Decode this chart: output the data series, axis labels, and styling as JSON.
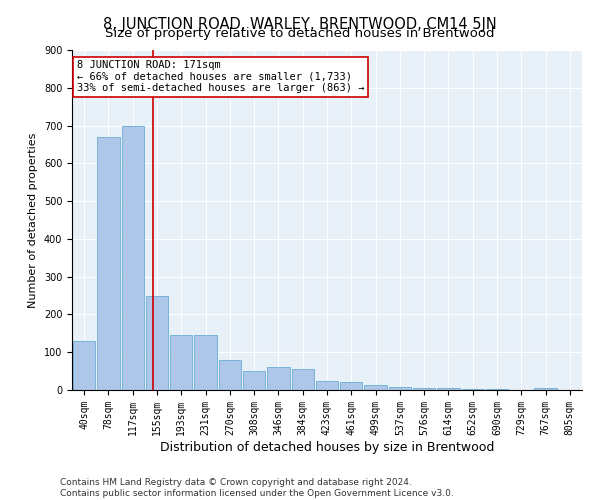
{
  "title": "8, JUNCTION ROAD, WARLEY, BRENTWOOD, CM14 5JN",
  "subtitle": "Size of property relative to detached houses in Brentwood",
  "xlabel": "Distribution of detached houses by size in Brentwood",
  "ylabel": "Number of detached properties",
  "bins": [
    "40sqm",
    "78sqm",
    "117sqm",
    "155sqm",
    "193sqm",
    "231sqm",
    "270sqm",
    "308sqm",
    "346sqm",
    "384sqm",
    "423sqm",
    "461sqm",
    "499sqm",
    "537sqm",
    "576sqm",
    "614sqm",
    "652sqm",
    "690sqm",
    "729sqm",
    "767sqm",
    "805sqm"
  ],
  "bar_heights": [
    130,
    670,
    700,
    250,
    145,
    145,
    80,
    50,
    60,
    55,
    25,
    20,
    12,
    8,
    4,
    4,
    2,
    2,
    1,
    4,
    1
  ],
  "bar_color": "#aec6e8",
  "bar_edge_color": "#6aaed6",
  "bg_color": "#e8f0f8",
  "grid_color": "#ffffff",
  "vline_color": "#cc0000",
  "vline_pos": 2.82,
  "annotation_text": "8 JUNCTION ROAD: 171sqm\n← 66% of detached houses are smaller (1,733)\n33% of semi-detached houses are larger (863) →",
  "annotation_box_color": "#ffffff",
  "annotation_box_edge": "#cc0000",
  "ylim": [
    0,
    900
  ],
  "yticks": [
    0,
    100,
    200,
    300,
    400,
    500,
    600,
    700,
    800,
    900
  ],
  "footer_line1": "Contains HM Land Registry data © Crown copyright and database right 2024.",
  "footer_line2": "Contains public sector information licensed under the Open Government Licence v3.0.",
  "title_fontsize": 10.5,
  "subtitle_fontsize": 9.5,
  "xlabel_fontsize": 9,
  "ylabel_fontsize": 8,
  "tick_fontsize": 7,
  "footer_fontsize": 6.5,
  "annotation_fontsize": 7.5
}
